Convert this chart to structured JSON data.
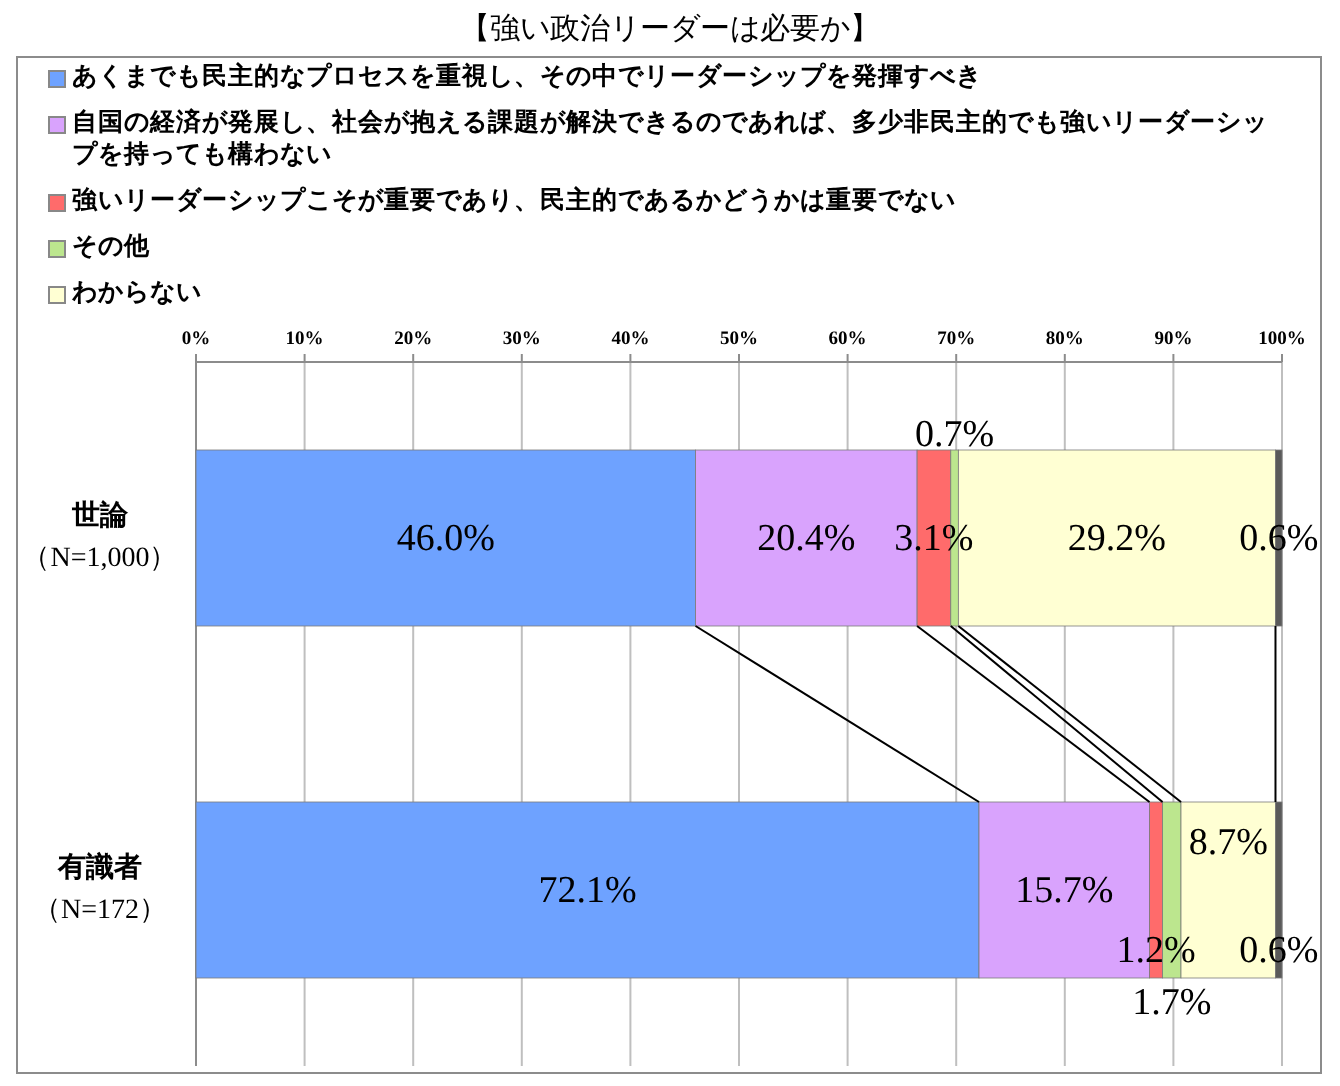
{
  "chart_data": {
    "type": "bar",
    "orientation": "horizontal",
    "stacked": true,
    "title": "【強い政治リーダーは必要か】",
    "categories": [
      "**世論**（N=1,000）",
      "**有識者**（N=172）"
    ],
    "series": [
      {
        "name": "あくまでも民主的なプロセスを重視し、その中でリーダーシップを発揮すべき",
        "color": "#6ea2ff",
        "values": [
          46.0,
          72.1
        ],
        "value_labels": [
          "46.0%",
          "72.1%"
        ]
      },
      {
        "name": "自国の経済が発展し、社会が抱える課題が解決できるのであれば、多少非民主的でも強いリーダーシップを持っても構わない",
        "color": "#d9a3fd",
        "values": [
          20.4,
          15.7
        ],
        "value_labels": [
          "20.4%",
          "15.7%"
        ]
      },
      {
        "name": "強いリーダーシップこそが重要であり、民主的であるかどうかは重要でない",
        "color": "#ff6b6b",
        "values": [
          3.1,
          1.2
        ],
        "value_labels": [
          "3.1%",
          "1.2%"
        ]
      },
      {
        "name": "その他",
        "color": "#bce68e",
        "values": [
          0.7,
          1.7
        ],
        "value_labels": [
          "0.7%",
          "1.7%"
        ]
      },
      {
        "name": "わからない",
        "color": "#ffffd3",
        "values": [
          29.2,
          8.7
        ],
        "value_labels": [
          "29.2%",
          "8.7%"
        ]
      },
      {
        "color": "#5a5a5a",
        "values": [
          0.6,
          0.6
        ],
        "value_labels": [
          "0.6%",
          "0.6%"
        ]
      }
    ],
    "xlim": [
      0,
      100
    ],
    "xticks": [
      {
        "value": 0,
        "label": "0%"
      },
      {
        "value": 10,
        "label": "10%"
      },
      {
        "value": 20,
        "label": "20%"
      },
      {
        "value": 30,
        "label": "30%"
      },
      {
        "value": 40,
        "label": "40%"
      },
      {
        "value": 50,
        "label": "50%"
      },
      {
        "value": 60,
        "label": "60%"
      },
      {
        "value": 70,
        "label": "70%"
      },
      {
        "value": 80,
        "label": "80%"
      },
      {
        "value": 90,
        "label": "90%"
      },
      {
        "value": 100,
        "label": "100%"
      }
    ],
    "grid": "x",
    "legend": "top"
  }
}
